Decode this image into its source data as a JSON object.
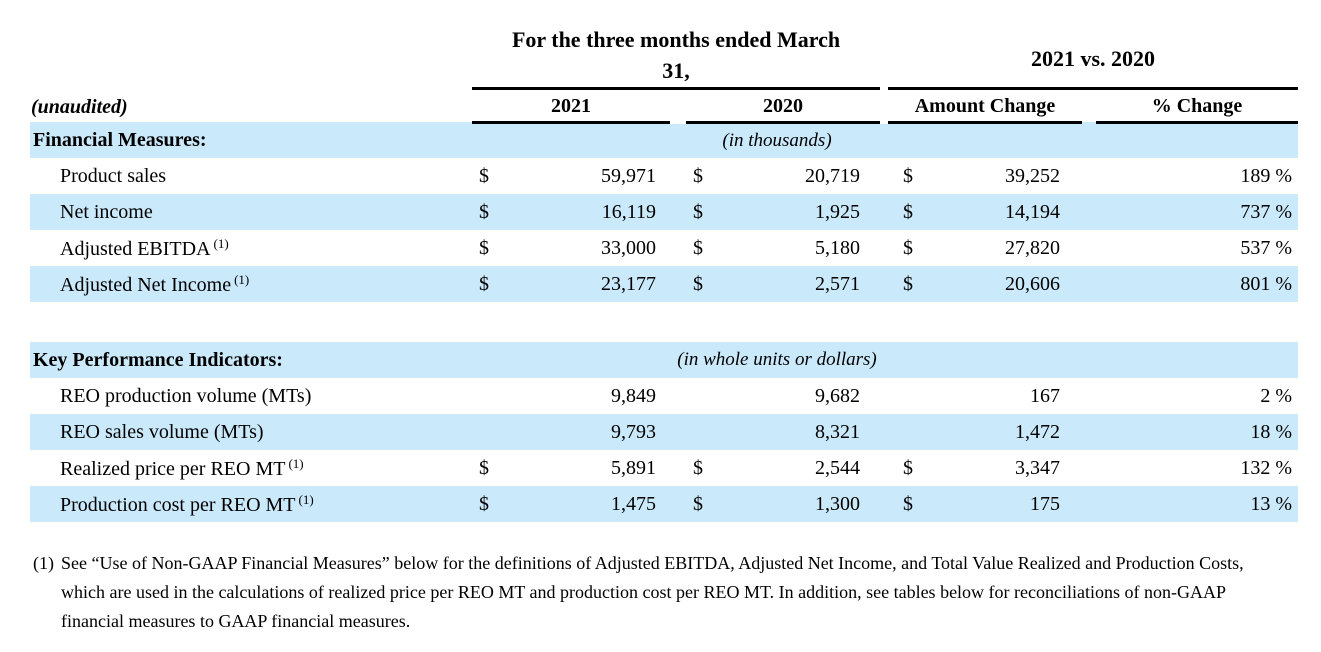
{
  "colors": {
    "row_highlight": "#cae9fb",
    "rule_line": "#000000",
    "text": "#000000"
  },
  "table": {
    "unaudited_label": "(unaudited)",
    "group_headers": {
      "period_line1": "For the three months ended March",
      "period_line2": "31,",
      "comparison": "2021 vs. 2020"
    },
    "columns": {
      "col1": "2021",
      "col2": "2020",
      "col3": "Amount Change",
      "col4": "% Change"
    },
    "sections": [
      {
        "title": "Financial Measures:",
        "note": "(in thousands)",
        "rows": [
          {
            "label": "Product sales",
            "sup": "",
            "cur1": "$",
            "val1": "59,971",
            "cur2": "$",
            "val2": "20,719",
            "cur3": "$",
            "val3": "39,252",
            "pct": "189 %"
          },
          {
            "label": "Net income",
            "sup": "",
            "cur1": "$",
            "val1": "16,119",
            "cur2": "$",
            "val2": "1,925",
            "cur3": "$",
            "val3": "14,194",
            "pct": "737 %"
          },
          {
            "label": "Adjusted EBITDA",
            "sup": "(1)",
            "cur1": "$",
            "val1": "33,000",
            "cur2": "$",
            "val2": "5,180",
            "cur3": "$",
            "val3": "27,820",
            "pct": "537 %"
          },
          {
            "label": "Adjusted Net Income",
            "sup": "(1)",
            "cur1": "$",
            "val1": "23,177",
            "cur2": "$",
            "val2": "2,571",
            "cur3": "$",
            "val3": "20,606",
            "pct": "801 %"
          }
        ]
      },
      {
        "title": "Key Performance Indicators:",
        "note": "(in whole units or dollars)",
        "rows": [
          {
            "label": "REO production volume (MTs)",
            "sup": "",
            "cur1": "",
            "val1": "9,849",
            "cur2": "",
            "val2": "9,682",
            "cur3": "",
            "val3": "167",
            "pct": "2 %"
          },
          {
            "label": "REO sales volume (MTs)",
            "sup": "",
            "cur1": "",
            "val1": "9,793",
            "cur2": "",
            "val2": "8,321",
            "cur3": "",
            "val3": "1,472",
            "pct": "18 %"
          },
          {
            "label": "Realized price per REO MT",
            "sup": "(1)",
            "cur1": "$",
            "val1": "5,891",
            "cur2": "$",
            "val2": "2,544",
            "cur3": "$",
            "val3": "3,347",
            "pct": "132 %"
          },
          {
            "label": "Production cost per REO MT",
            "sup": "(1)",
            "cur1": "$",
            "val1": "1,475",
            "cur2": "$",
            "val2": "1,300",
            "cur3": "$",
            "val3": "175",
            "pct": "13 %"
          }
        ]
      }
    ]
  },
  "footnote": {
    "marker": "(1)",
    "text": "See “Use of Non-GAAP Financial Measures” below for the definitions of Adjusted EBITDA, Adjusted Net Income, and Total Value Realized and Production Costs, which are used in the calculations of realized price per REO MT and production cost per REO MT. In addition, see tables below for reconciliations of non-GAAP financial measures to GAAP financial measures."
  }
}
